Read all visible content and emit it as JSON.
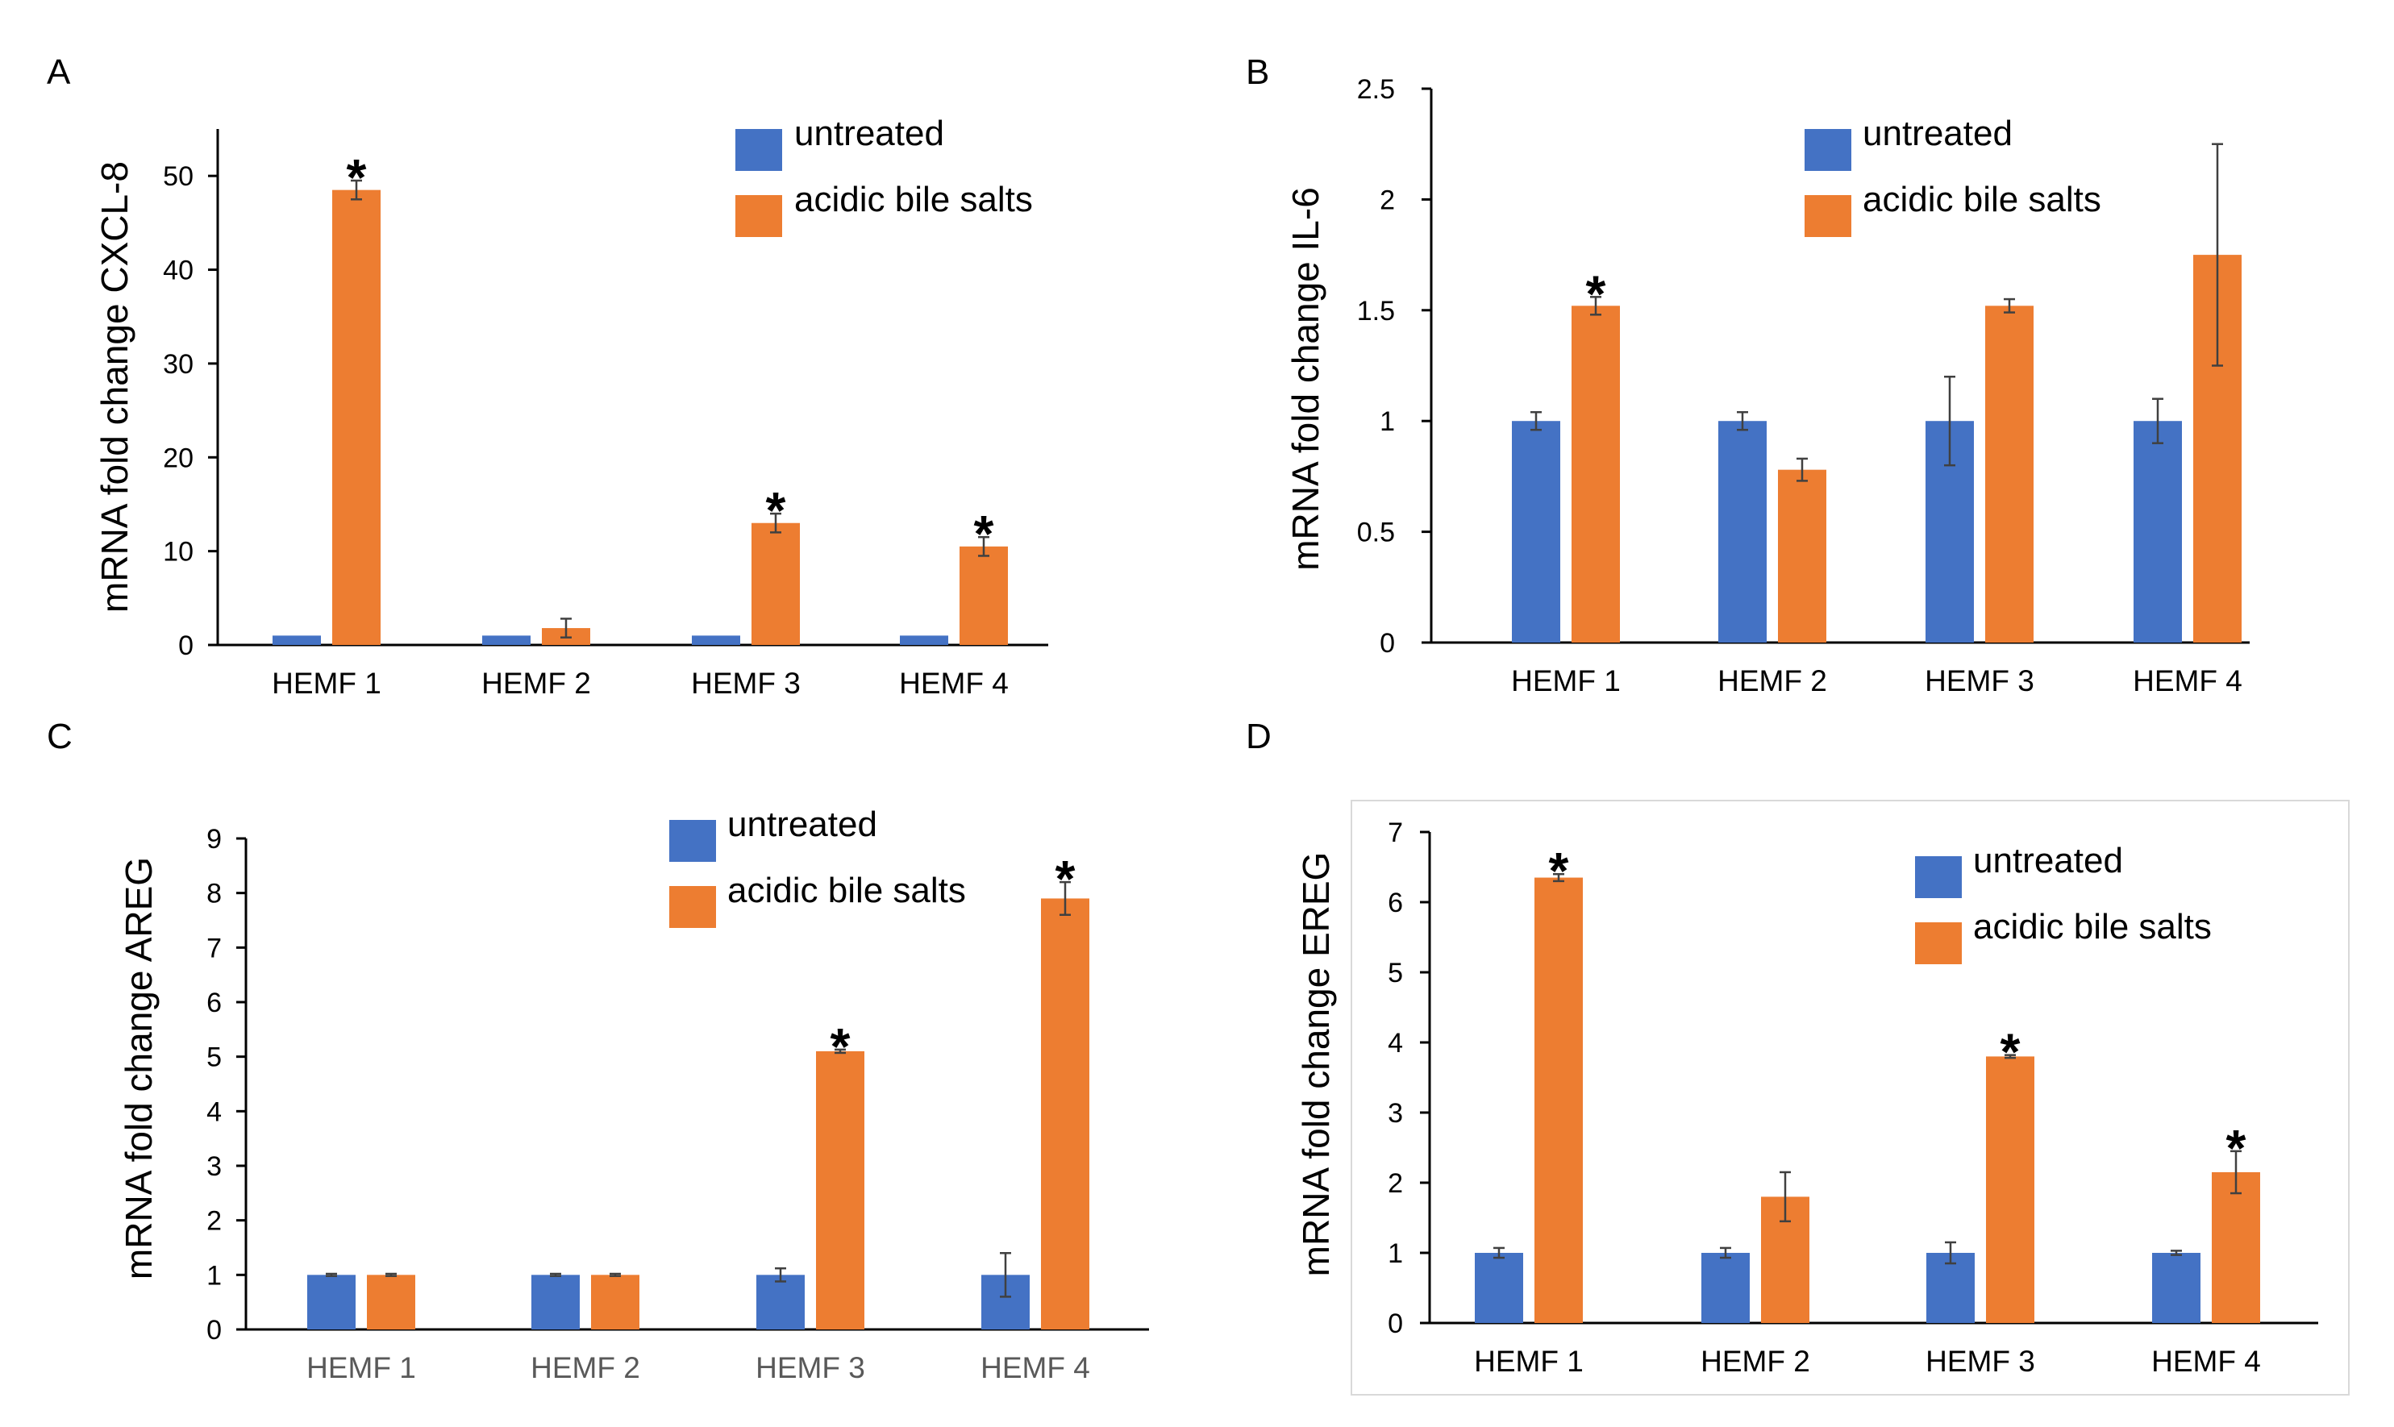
{
  "colors": {
    "untreated": "#4472C4",
    "acidic": "#ED7D31",
    "axis": "#000000",
    "error": "#404040",
    "frame": "#d9d9d9"
  },
  "chart_data": [
    {
      "panel": "A",
      "type": "bar",
      "ylabel": "mRNA fold change CXCL-8",
      "ylim": [
        0,
        55
      ],
      "yticks": [
        0,
        10,
        20,
        30,
        40,
        50
      ],
      "categories": [
        "HEMF 1",
        "HEMF 2",
        "HEMF 3",
        "HEMF 4"
      ],
      "series": [
        {
          "name": "untreated",
          "values": [
            1,
            1,
            1,
            1
          ],
          "errors": [
            0,
            0,
            0,
            0
          ]
        },
        {
          "name": "acidic bile salts",
          "values": [
            48.5,
            1.8,
            13.0,
            10.5
          ],
          "errors": [
            1.0,
            1.0,
            1.0,
            1.0
          ]
        }
      ],
      "significance": [
        "*",
        "",
        "*",
        "*"
      ],
      "legend": "top-right"
    },
    {
      "panel": "B",
      "type": "bar",
      "ylabel": "mRNA fold change IL-6",
      "ylim": [
        0,
        2.5
      ],
      "yticks": [
        0,
        0.5,
        1,
        1.5,
        2,
        2.5
      ],
      "categories": [
        "HEMF 1",
        "HEMF 2",
        "HEMF 3",
        "HEMF 4"
      ],
      "series": [
        {
          "name": "untreated",
          "values": [
            1,
            1,
            1,
            1
          ],
          "errors": [
            0.04,
            0.04,
            0.2,
            0.1
          ]
        },
        {
          "name": "acidic bile salts",
          "values": [
            1.52,
            0.78,
            1.52,
            1.75
          ],
          "errors": [
            0.04,
            0.05,
            0.03,
            0.5
          ]
        }
      ],
      "significance": [
        "*",
        "",
        "",
        ""
      ],
      "legend": "top-right"
    },
    {
      "panel": "C",
      "type": "bar",
      "ylabel": "mRNA fold change AREG",
      "ylim": [
        0,
        9
      ],
      "yticks": [
        0,
        1,
        2,
        3,
        4,
        5,
        6,
        7,
        8,
        9
      ],
      "categories": [
        "HEMF 1",
        "HEMF 2",
        "HEMF 3",
        "HEMF 4"
      ],
      "series": [
        {
          "name": "untreated",
          "values": [
            1,
            1,
            1,
            1
          ],
          "errors": [
            0.02,
            0.02,
            0.12,
            0.4
          ]
        },
        {
          "name": "acidic bile salts",
          "values": [
            1,
            1,
            5.1,
            7.9
          ],
          "errors": [
            0.02,
            0.02,
            0.03,
            0.3
          ]
        }
      ],
      "significance": [
        "",
        "",
        "*",
        "*"
      ],
      "legend": "top-right"
    },
    {
      "panel": "D",
      "type": "bar",
      "ylabel": "mRNA fold change EREG",
      "ylim": [
        0,
        7
      ],
      "yticks": [
        0,
        1,
        2,
        3,
        4,
        5,
        6,
        7
      ],
      "categories": [
        "HEMF 1",
        "HEMF 2",
        "HEMF 3",
        "HEMF 4"
      ],
      "series": [
        {
          "name": "untreated",
          "values": [
            1,
            1,
            1,
            1
          ],
          "errors": [
            0.07,
            0.07,
            0.15,
            0.03
          ]
        },
        {
          "name": "acidic bile salts",
          "values": [
            6.35,
            1.8,
            3.8,
            2.15
          ],
          "errors": [
            0.05,
            0.35,
            0.02,
            0.3
          ]
        }
      ],
      "significance": [
        "*",
        "",
        "*",
        "*"
      ],
      "legend": "top-right"
    }
  ]
}
